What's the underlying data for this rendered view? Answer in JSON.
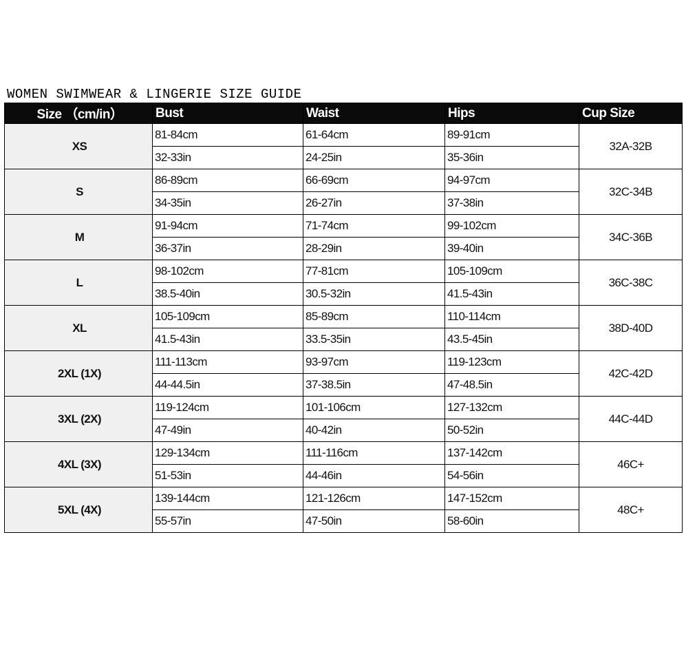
{
  "title": "WOMEN SWIMWEAR & LINGERIE SIZE GUIDE",
  "headers": [
    "Size （cm/in）",
    "Bust",
    "Waist",
    "Hips",
    "Cup Size"
  ],
  "rows": [
    {
      "size": "XS",
      "bust": [
        "81-84cm",
        "32-33in"
      ],
      "waist": [
        "61-64cm",
        "24-25in"
      ],
      "hips": [
        "89-91cm",
        "35-36in"
      ],
      "cup": "32A-32B"
    },
    {
      "size": "S",
      "bust": [
        "86-89cm",
        "34-35in"
      ],
      "waist": [
        "66-69cm",
        "26-27in"
      ],
      "hips": [
        "94-97cm",
        "37-38in"
      ],
      "cup": "32C-34B"
    },
    {
      "size": "M",
      "bust": [
        "91-94cm",
        "36-37in"
      ],
      "waist": [
        "71-74cm",
        "28-29in"
      ],
      "hips": [
        "99-102cm",
        "39-40in"
      ],
      "cup": "34C-36B"
    },
    {
      "size": "L",
      "bust": [
        "98-102cm",
        "38.5-40in"
      ],
      "waist": [
        "77-81cm",
        "30.5-32in"
      ],
      "hips": [
        "105-109cm",
        "41.5-43in"
      ],
      "cup": "36C-38C"
    },
    {
      "size": "XL",
      "bust": [
        "105-109cm",
        "41.5-43in"
      ],
      "waist": [
        "85-89cm",
        "33.5-35in"
      ],
      "hips": [
        "110-114cm",
        "43.5-45in"
      ],
      "cup": "38D-40D"
    },
    {
      "size": "2XL (1X)",
      "bust": [
        "111-113cm",
        "44-44.5in"
      ],
      "waist": [
        "93-97cm",
        "37-38.5in"
      ],
      "hips": [
        "119-123cm",
        "47-48.5in"
      ],
      "cup": "42C-42D"
    },
    {
      "size": "3XL (2X)",
      "bust": [
        "119-124cm",
        "47-49in"
      ],
      "waist": [
        "101-106cm",
        "40-42in"
      ],
      "hips": [
        "127-132cm",
        "50-52in"
      ],
      "cup": "44C-44D"
    },
    {
      "size": "4XL (3X)",
      "bust": [
        "129-134cm",
        "51-53in"
      ],
      "waist": [
        "111-116cm",
        "44-46in"
      ],
      "hips": [
        "137-142cm",
        "54-56in"
      ],
      "cup": "46C+"
    },
    {
      "size": "5XL (4X)",
      "bust": [
        "139-144cm",
        "55-57in"
      ],
      "waist": [
        "121-126cm",
        "47-50in"
      ],
      "hips": [
        "147-152cm",
        "58-60in"
      ],
      "cup": "48C+"
    }
  ]
}
